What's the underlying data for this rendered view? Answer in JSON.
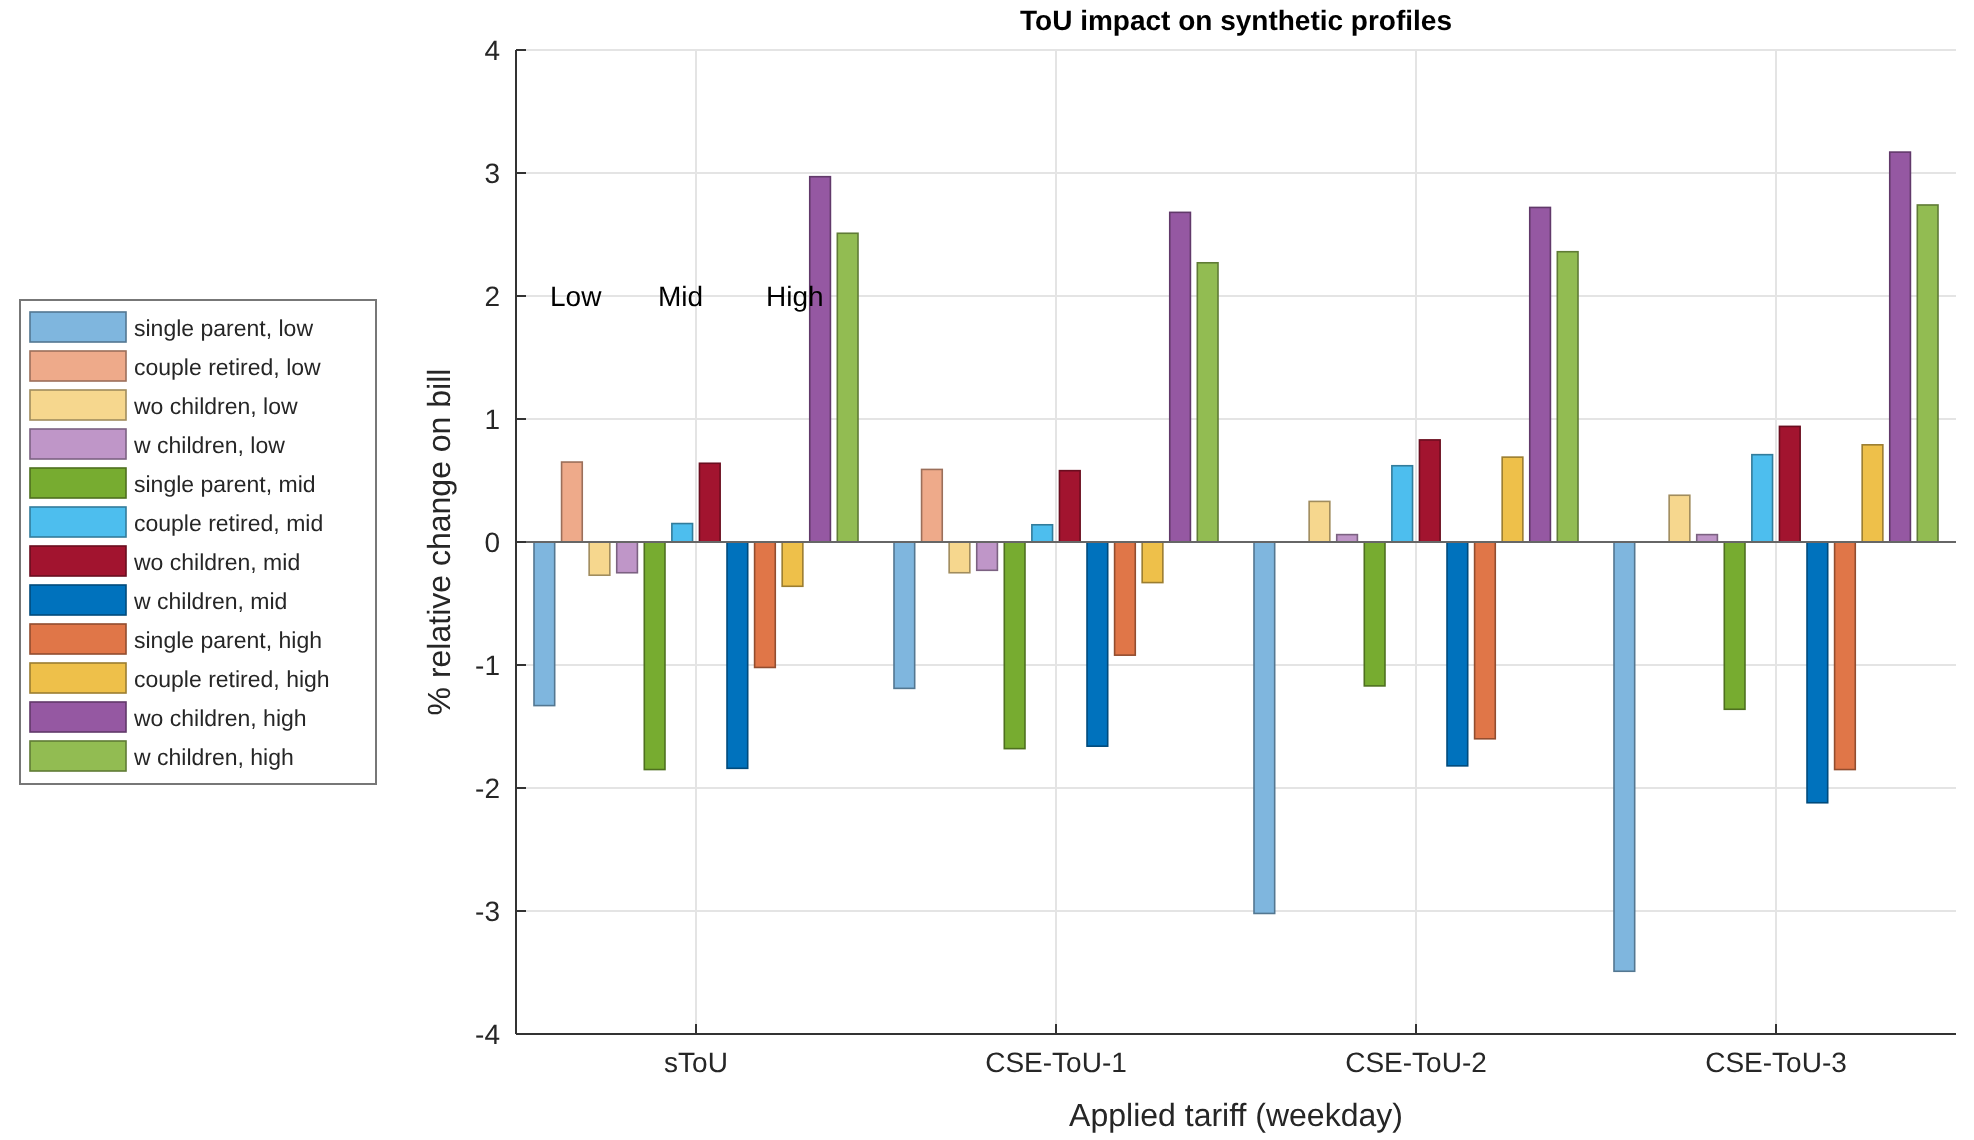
{
  "chart_data": {
    "type": "bar",
    "title": "ToU impact on synthetic profiles",
    "xlabel": "Applied tariff (weekday)",
    "ylabel": "% relative change on bill",
    "categories": [
      "sToU",
      "CSE-ToU-1",
      "CSE-ToU-2",
      "CSE-ToU-3"
    ],
    "series": [
      {
        "name": "single parent, low",
        "color": "#7fb6de",
        "values": [
          -1.33,
          -1.19,
          -3.02,
          -3.49
        ]
      },
      {
        "name": "couple retired, low",
        "color": "#eeaa8a",
        "values": [
          0.65,
          0.59,
          0,
          0
        ]
      },
      {
        "name": "wo children, low",
        "color": "#f6d78e",
        "values": [
          -0.27,
          -0.25,
          0.33,
          0.38
        ]
      },
      {
        "name": "w children, low",
        "color": "#bf96c8",
        "values": [
          -0.25,
          -0.23,
          0.06,
          0.06
        ]
      },
      {
        "name": "single parent, mid",
        "color": "#77ac30",
        "values": [
          -1.85,
          -1.68,
          -1.17,
          -1.36
        ]
      },
      {
        "name": "couple retired, mid",
        "color": "#4dbeee",
        "values": [
          0.15,
          0.14,
          0.62,
          0.71
        ]
      },
      {
        "name": "wo children, mid",
        "color": "#a2142f",
        "values": [
          0.64,
          0.58,
          0.83,
          0.94
        ]
      },
      {
        "name": "w children, mid",
        "color": "#0072bd",
        "values": [
          -1.84,
          -1.66,
          -1.82,
          -2.12
        ]
      },
      {
        "name": "single parent, high",
        "color": "#e07648",
        "values": [
          -1.02,
          -0.92,
          -1.6,
          -1.85
        ]
      },
      {
        "name": "couple retired, high",
        "color": "#eec04a",
        "values": [
          -0.36,
          -0.33,
          0.69,
          0.79
        ]
      },
      {
        "name": "wo children, high",
        "color": "#9558a2",
        "values": [
          2.97,
          2.68,
          2.72,
          3.17
        ]
      },
      {
        "name": "w children, high",
        "color": "#92bc52",
        "values": [
          2.51,
          2.27,
          2.36,
          2.74
        ]
      }
    ],
    "annotations": [
      "Low",
      "Mid",
      "High"
    ],
    "ylim": [
      -4,
      4
    ],
    "yticks": [
      -4,
      -3,
      -2,
      -1,
      0,
      1,
      2,
      3,
      4
    ],
    "grid": true,
    "legend": "left"
  }
}
